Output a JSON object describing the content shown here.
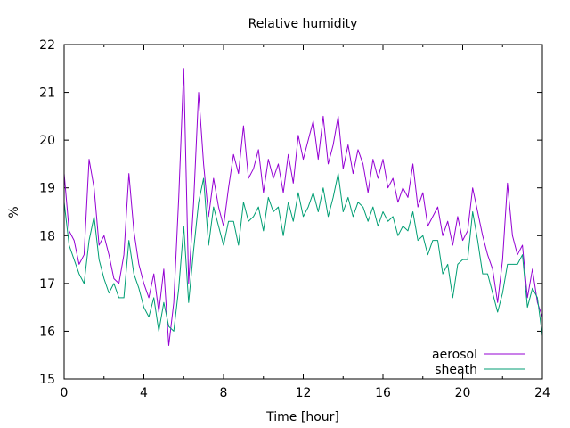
{
  "chart_data": {
    "type": "line",
    "title": "Relative humidity",
    "xlabel": "Time [hour]",
    "ylabel": "%",
    "xlim": [
      0,
      24
    ],
    "ylim": [
      15,
      22
    ],
    "xticks": [
      0,
      4,
      8,
      12,
      16,
      20,
      24
    ],
    "yticks": [
      15,
      16,
      17,
      18,
      19,
      20,
      21,
      22
    ],
    "xtick_labels": [
      "0",
      "4",
      "8",
      "12",
      "16",
      "20",
      "24"
    ],
    "ytick_labels": [
      "15",
      "16",
      "17",
      "18",
      "19",
      "20",
      "21",
      "22"
    ],
    "grid": false,
    "legend": "bottom-right",
    "series": [
      {
        "name": "aerosol",
        "color": "#9400d3",
        "x": [
          0,
          0.25,
          0.5,
          0.75,
          1.0,
          1.25,
          1.5,
          1.75,
          2.0,
          2.25,
          2.5,
          2.75,
          3.0,
          3.25,
          3.5,
          3.75,
          4.0,
          4.25,
          4.5,
          4.75,
          5.0,
          5.25,
          5.5,
          5.75,
          6.0,
          6.25,
          6.5,
          6.75,
          7.0,
          7.25,
          7.5,
          7.75,
          8.0,
          8.25,
          8.5,
          8.75,
          9.0,
          9.25,
          9.5,
          9.75,
          10.0,
          10.25,
          10.5,
          10.75,
          11.0,
          11.25,
          11.5,
          11.75,
          12.0,
          12.25,
          12.5,
          12.75,
          13.0,
          13.25,
          13.5,
          13.75,
          14.0,
          14.25,
          14.5,
          14.75,
          15.0,
          15.25,
          15.5,
          15.75,
          16.0,
          16.25,
          16.5,
          16.75,
          17.0,
          17.25,
          17.5,
          17.75,
          18.0,
          18.25,
          18.5,
          18.75,
          19.0,
          19.25,
          19.5,
          19.75,
          20.0,
          20.25,
          20.5,
          20.75,
          21.0,
          21.25,
          21.5,
          21.75,
          22.0,
          22.25,
          22.5,
          22.75,
          23.0,
          23.25,
          23.5,
          23.75,
          24.0
        ],
        "y": [
          19.3,
          18.1,
          17.9,
          17.4,
          17.6,
          19.6,
          19.0,
          17.8,
          18.0,
          17.6,
          17.1,
          17.0,
          17.6,
          19.3,
          18.1,
          17.4,
          17.0,
          16.7,
          17.2,
          16.4,
          17.3,
          15.7,
          16.6,
          18.8,
          21.5,
          17.0,
          18.7,
          21.0,
          19.5,
          18.4,
          19.2,
          18.6,
          18.2,
          19.0,
          19.7,
          19.3,
          20.3,
          19.2,
          19.4,
          19.8,
          18.9,
          19.6,
          19.2,
          19.5,
          18.9,
          19.7,
          19.1,
          20.1,
          19.6,
          20.0,
          20.4,
          19.6,
          20.5,
          19.5,
          19.9,
          20.5,
          19.4,
          19.9,
          19.3,
          19.8,
          19.5,
          18.9,
          19.6,
          19.2,
          19.6,
          19.0,
          19.2,
          18.7,
          19.0,
          18.8,
          19.5,
          18.6,
          18.9,
          18.2,
          18.4,
          18.6,
          18.0,
          18.3,
          17.8,
          18.4,
          17.9,
          18.1,
          19.0,
          18.5,
          18.0,
          17.6,
          17.3,
          16.6,
          17.5,
          19.1,
          18.0,
          17.6,
          17.8,
          16.7,
          17.3,
          16.6,
          16.3
        ]
      },
      {
        "name": "sheath",
        "color": "#009e73",
        "x": [
          0,
          0.25,
          0.5,
          0.75,
          1.0,
          1.25,
          1.5,
          1.75,
          2.0,
          2.25,
          2.5,
          2.75,
          3.0,
          3.25,
          3.5,
          3.75,
          4.0,
          4.25,
          4.5,
          4.75,
          5.0,
          5.25,
          5.5,
          5.75,
          6.0,
          6.25,
          6.5,
          6.75,
          7.0,
          7.25,
          7.5,
          7.75,
          8.0,
          8.25,
          8.5,
          8.75,
          9.0,
          9.25,
          9.5,
          9.75,
          10.0,
          10.25,
          10.5,
          10.75,
          11.0,
          11.25,
          11.5,
          11.75,
          12.0,
          12.25,
          12.5,
          12.75,
          13.0,
          13.25,
          13.5,
          13.75,
          14.0,
          14.25,
          14.5,
          14.75,
          15.0,
          15.25,
          15.5,
          15.75,
          16.0,
          16.25,
          16.5,
          16.75,
          17.0,
          17.25,
          17.5,
          17.75,
          18.0,
          18.25,
          18.5,
          18.75,
          19.0,
          19.25,
          19.5,
          19.75,
          20.0,
          20.25,
          20.5,
          20.75,
          21.0,
          21.25,
          21.5,
          21.75,
          22.0,
          22.25,
          22.5,
          22.75,
          23.0,
          23.25,
          23.5,
          23.75,
          24.0
        ],
        "y": [
          18.7,
          17.8,
          17.5,
          17.2,
          17.0,
          17.9,
          18.4,
          17.5,
          17.1,
          16.8,
          17.0,
          16.7,
          16.7,
          17.9,
          17.2,
          16.9,
          16.5,
          16.3,
          16.7,
          16.0,
          16.6,
          16.1,
          16.0,
          16.9,
          18.2,
          16.6,
          17.7,
          18.7,
          19.2,
          17.8,
          18.6,
          18.2,
          17.8,
          18.3,
          18.3,
          17.8,
          18.7,
          18.3,
          18.4,
          18.6,
          18.1,
          18.8,
          18.5,
          18.6,
          18.0,
          18.7,
          18.3,
          18.9,
          18.4,
          18.6,
          18.9,
          18.5,
          19.0,
          18.4,
          18.8,
          19.3,
          18.5,
          18.8,
          18.4,
          18.7,
          18.6,
          18.3,
          18.6,
          18.2,
          18.5,
          18.3,
          18.4,
          18.0,
          18.2,
          18.1,
          18.5,
          17.9,
          18.0,
          17.6,
          17.9,
          17.9,
          17.2,
          17.4,
          16.7,
          17.4,
          17.5,
          17.5,
          18.5,
          17.9,
          17.2,
          17.2,
          16.8,
          16.4,
          16.8,
          17.4,
          17.4,
          17.4,
          17.6,
          16.5,
          16.9,
          16.7,
          15.9
        ]
      }
    ]
  }
}
